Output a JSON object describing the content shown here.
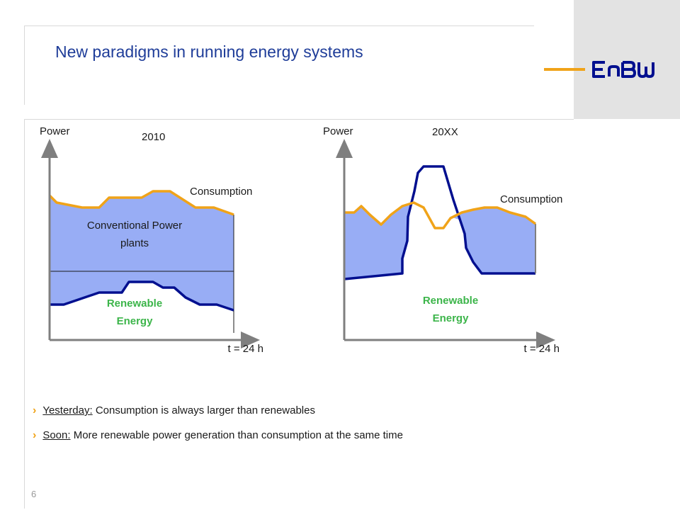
{
  "slide": {
    "title": "New paradigms in running energy systems",
    "page_number": "6",
    "logo_text": "EnBW"
  },
  "left_chart": {
    "year": "2010",
    "y_axis_label": "Power",
    "x_axis_label": "t = 24 h",
    "consumption_label": "Consumption",
    "conventional_label": "Conventional Power plants",
    "renewable_label": "Renewable Energy"
  },
  "right_chart": {
    "year": "20XX",
    "y_axis_label": "Power",
    "x_axis_label": "t = 24 h",
    "consumption_label": "Consumption",
    "renewable_label": "Renewable Energy"
  },
  "bullets": [
    {
      "term": "Yesterday:",
      "text": " Consumption is always larger than renewables"
    },
    {
      "term": "Soon:",
      "text": " More renewable power generation than consumption at the same time"
    }
  ],
  "colors": {
    "title": "#1f3d99",
    "consumption_line": "#f0a319",
    "renewable_line": "#000f8f",
    "area_fill": "#98adf5",
    "renewable_text": "#3cb54a",
    "axis": "#7f7f7f"
  }
}
